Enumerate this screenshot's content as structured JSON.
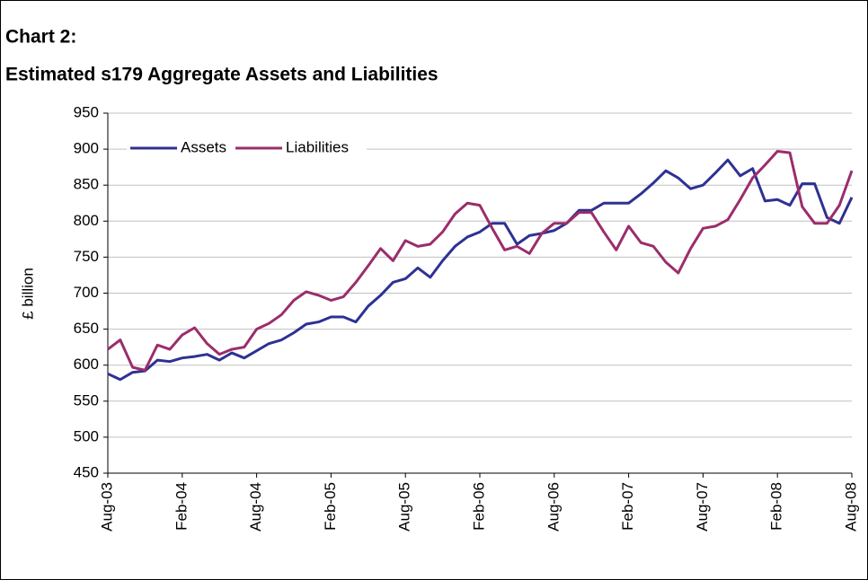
{
  "chart_data": {
    "type": "line",
    "title": "Chart 2:",
    "subtitle": "Estimated s179 Aggregate Assets and Liabilities",
    "y_label": "£ billion",
    "categories": [
      "Aug-03",
      null,
      null,
      null,
      null,
      null,
      "Feb-04",
      null,
      null,
      null,
      null,
      null,
      "Aug-04",
      null,
      null,
      null,
      null,
      null,
      "Feb-05",
      null,
      null,
      null,
      null,
      null,
      "Aug-05",
      null,
      null,
      null,
      null,
      null,
      "Feb-06",
      null,
      null,
      null,
      null,
      null,
      "Aug-06",
      null,
      null,
      null,
      null,
      null,
      "Feb-07",
      null,
      null,
      null,
      null,
      null,
      "Aug-07",
      null,
      null,
      null,
      null,
      null,
      "Feb-08",
      null,
      null,
      null,
      null,
      null,
      "Aug-08"
    ],
    "series": [
      {
        "name": "Assets",
        "color": "#2e3192",
        "values": [
          588,
          580,
          590,
          592,
          607,
          605,
          610,
          612,
          615,
          607,
          617,
          610,
          620,
          630,
          635,
          645,
          657,
          660,
          667,
          667,
          660,
          682,
          697,
          715,
          720,
          735,
          722,
          745,
          765,
          778,
          785,
          797,
          797,
          768,
          780,
          783,
          787,
          797,
          815,
          815,
          825,
          825,
          825,
          838,
          853,
          870,
          860,
          845,
          850,
          867,
          885,
          863,
          873,
          828,
          830,
          822,
          852,
          852,
          805,
          797,
          833
        ]
      },
      {
        "name": "Liabilities",
        "color": "#9b2d6b",
        "values": [
          622,
          635,
          597,
          593,
          628,
          622,
          642,
          652,
          630,
          615,
          622,
          625,
          650,
          658,
          670,
          690,
          702,
          697,
          690,
          695,
          715,
          738,
          762,
          745,
          773,
          765,
          768,
          785,
          810,
          825,
          822,
          790,
          760,
          765,
          755,
          783,
          797,
          797,
          812,
          812,
          785,
          760,
          793,
          770,
          765,
          743,
          728,
          762,
          790,
          793,
          802,
          830,
          860,
          878,
          897,
          895,
          820,
          797,
          797,
          822,
          870
        ]
      }
    ],
    "ylim": [
      450,
      950
    ],
    "yticks": [
      450,
      500,
      550,
      600,
      650,
      700,
      750,
      800,
      850,
      900,
      950
    ],
    "grid": true,
    "legend": "top-left"
  }
}
